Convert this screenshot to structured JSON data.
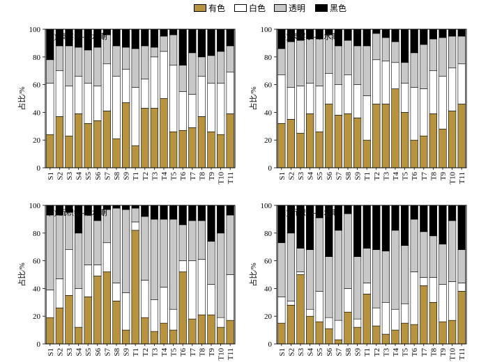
{
  "legend": [
    {
      "label": "有色",
      "color": "#b8933f"
    },
    {
      "label": "白色",
      "color": "#ffffff"
    },
    {
      "label": "透明",
      "color": "#c8c8c8"
    },
    {
      "label": "黑色",
      "color": "#000000"
    }
  ],
  "chart_data": [
    {
      "type": "bar",
      "stacked": true,
      "title": "(a) 表层水-枯水期",
      "ylabel": "占比/%",
      "ylim": [
        0,
        100
      ],
      "yticks": [
        0,
        20,
        40,
        60,
        80,
        100
      ],
      "categories": [
        "S1",
        "S2",
        "S3",
        "S4",
        "S5",
        "S6",
        "S7",
        "S8",
        "S9",
        "T1",
        "T2",
        "T3",
        "T4",
        "T5",
        "T6",
        "T7",
        "T8",
        "T9",
        "T10",
        "T11"
      ],
      "series": [
        {
          "name": "有色",
          "values": [
            24,
            37,
            23,
            39,
            32,
            34,
            41,
            21,
            47,
            16,
            43,
            43,
            50,
            26,
            27,
            29,
            37,
            26,
            24,
            39
          ]
        },
        {
          "name": "白色",
          "values": [
            37,
            33,
            36,
            27,
            29,
            25,
            34,
            45,
            24,
            42,
            21,
            37,
            34,
            48,
            28,
            24,
            29,
            35,
            37,
            30
          ]
        },
        {
          "name": "透明",
          "values": [
            17,
            18,
            29,
            21,
            24,
            28,
            21,
            22,
            16,
            28,
            24,
            7,
            11,
            22,
            19,
            30,
            14,
            20,
            23,
            19
          ]
        },
        {
          "name": "黑色",
          "values": [
            22,
            12,
            12,
            13,
            15,
            13,
            4,
            12,
            13,
            14,
            12,
            13,
            5,
            4,
            26,
            17,
            20,
            19,
            16,
            12
          ]
        }
      ]
    },
    {
      "type": "bar",
      "stacked": true,
      "title": "(b) 表层水-丰水期",
      "ylabel": "占比/%",
      "ylim": [
        0,
        100
      ],
      "yticks": [
        0,
        20,
        40,
        60,
        80,
        100
      ],
      "categories": [
        "S1",
        "S2",
        "S3",
        "S4",
        "S5",
        "S6",
        "S7",
        "S8",
        "S9",
        "T1",
        "T2",
        "T3",
        "T4",
        "T5",
        "T6",
        "T7",
        "T8",
        "T9",
        "T10",
        "T11"
      ],
      "series": [
        {
          "name": "有色",
          "values": [
            32,
            35,
            25,
            39,
            26,
            46,
            38,
            39,
            36,
            20,
            46,
            46,
            57,
            40,
            20,
            23,
            39,
            28,
            41,
            46
          ]
        },
        {
          "name": "白色",
          "values": [
            35,
            23,
            34,
            22,
            33,
            22,
            22,
            28,
            24,
            32,
            32,
            31,
            19,
            21,
            38,
            34,
            31,
            38,
            31,
            29
          ]
        },
        {
          "name": "透明",
          "values": [
            19,
            33,
            33,
            32,
            34,
            28,
            28,
            25,
            28,
            36,
            19,
            17,
            15,
            15,
            25,
            32,
            23,
            28,
            23,
            20
          ]
        },
        {
          "name": "黑色",
          "values": [
            14,
            9,
            8,
            7,
            7,
            4,
            12,
            8,
            12,
            12,
            3,
            6,
            9,
            24,
            17,
            11,
            7,
            6,
            5,
            5
          ]
        }
      ]
    },
    {
      "type": "bar",
      "stacked": true,
      "title": "(c) 沉积物-枯水期",
      "ylabel": "占比/%",
      "ylim": [
        0,
        100
      ],
      "yticks": [
        0,
        20,
        40,
        60,
        80,
        100
      ],
      "categories": [
        "S1",
        "S2",
        "S3",
        "S4",
        "S5",
        "S6",
        "S7",
        "S8",
        "S9",
        "T1",
        "T2",
        "T3",
        "T4",
        "T5",
        "T6",
        "T7",
        "T8",
        "T9",
        "T10",
        "T11"
      ],
      "series": [
        {
          "name": "有色",
          "values": [
            19,
            26,
            35,
            12,
            34,
            49,
            52,
            31,
            10,
            82,
            19,
            9,
            15,
            10,
            52,
            18,
            21,
            21,
            12,
            17
          ]
        },
        {
          "name": "白色",
          "values": [
            20,
            21,
            33,
            28,
            23,
            8,
            21,
            13,
            27,
            6,
            27,
            23,
            26,
            15,
            8,
            42,
            40,
            22,
            7,
            33
          ]
        },
        {
          "name": "透明",
          "values": [
            54,
            46,
            27,
            40,
            36,
            32,
            24,
            54,
            60,
            10,
            46,
            58,
            49,
            65,
            26,
            29,
            28,
            31,
            61,
            43
          ]
        },
        {
          "name": "黑色",
          "values": [
            7,
            7,
            5,
            20,
            7,
            11,
            3,
            2,
            3,
            2,
            8,
            10,
            10,
            10,
            14,
            11,
            11,
            26,
            20,
            7
          ]
        }
      ]
    },
    {
      "type": "bar",
      "stacked": true,
      "title": "(d) 沉积物-丰水期",
      "ylabel": "占比/%",
      "ylim": [
        0,
        100
      ],
      "yticks": [
        0,
        20,
        40,
        60,
        80,
        100
      ],
      "categories": [
        "S1",
        "S2",
        "S3",
        "S4",
        "S5",
        "S6",
        "S7",
        "S8",
        "S9",
        "T1",
        "T2",
        "T3",
        "T4",
        "T5",
        "T6",
        "T7",
        "T8",
        "T9",
        "T10",
        "T11"
      ],
      "series": [
        {
          "name": "有色",
          "values": [
            15,
            28,
            50,
            20,
            16,
            11,
            3,
            23,
            12,
            36,
            13,
            7,
            10,
            15,
            14,
            42,
            30,
            16,
            17,
            38
          ]
        },
        {
          "name": "白色",
          "values": [
            19,
            3,
            2,
            5,
            22,
            8,
            14,
            17,
            6,
            8,
            13,
            23,
            15,
            14,
            38,
            6,
            18,
            27,
            28,
            6
          ]
        },
        {
          "name": "透明",
          "values": [
            39,
            49,
            17,
            43,
            53,
            44,
            65,
            54,
            45,
            25,
            42,
            37,
            57,
            42,
            38,
            33,
            30,
            29,
            44,
            24
          ]
        },
        {
          "name": "黑色",
          "values": [
            27,
            20,
            31,
            32,
            9,
            37,
            18,
            6,
            37,
            31,
            32,
            33,
            18,
            29,
            10,
            19,
            22,
            28,
            11,
            32
          ]
        }
      ]
    }
  ]
}
